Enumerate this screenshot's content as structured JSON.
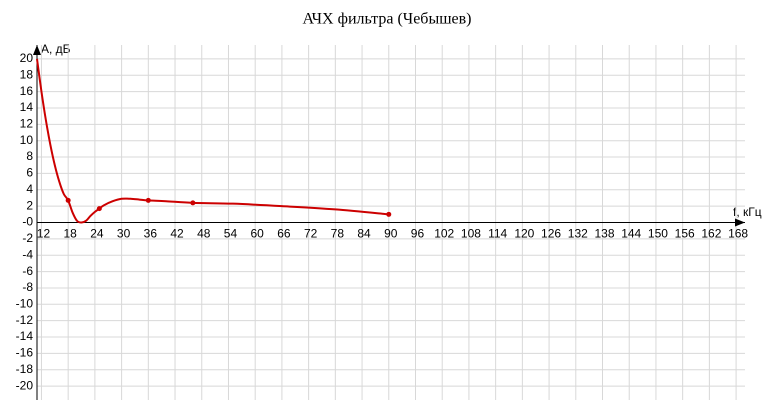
{
  "chart_data": {
    "type": "line",
    "title": "АЧХ фильтра (Чебышев)",
    "x_label": "f, кГц",
    "y_label": "A, дБ",
    "xlim": [
      11,
      170
    ],
    "ylim": [
      -21.7,
      21.7
    ],
    "xticks": [
      12,
      18,
      24,
      30,
      36,
      42,
      48,
      54,
      60,
      66,
      72,
      78,
      84,
      90,
      96,
      102,
      108,
      114,
      120,
      126,
      132,
      138,
      144,
      150,
      156,
      162,
      168
    ],
    "yticks": [
      -20,
      -18,
      -16,
      -14,
      -12,
      -10,
      -8,
      -6,
      -4,
      -2,
      {
        "value": 0,
        "label": "-0"
      },
      2,
      4,
      6,
      8,
      10,
      12,
      14,
      16,
      18,
      20
    ],
    "grid": true,
    "series": [
      {
        "color": "#cc0000",
        "x": [
          11,
          12,
          13,
          14,
          15,
          16,
          17,
          18,
          19,
          20,
          21,
          22,
          23,
          24,
          25,
          26,
          28,
          30,
          32,
          34,
          36,
          40,
          46,
          55,
          66,
          78,
          90
        ],
        "values": [
          20,
          16,
          12.5,
          9.5,
          7,
          5,
          3.5,
          2.7,
          1.2,
          0.2,
          0,
          0.2,
          0.8,
          1.3,
          1.7,
          2.1,
          2.6,
          2.9,
          2.9,
          2.8,
          2.7,
          2.6,
          2.4,
          2.3,
          2.0,
          1.6,
          1.0
        ]
      }
    ],
    "markers": {
      "x": [
        18,
        25,
        36,
        46,
        90
      ],
      "values": [
        2.7,
        1.7,
        2.7,
        2.4,
        1.0
      ]
    }
  }
}
